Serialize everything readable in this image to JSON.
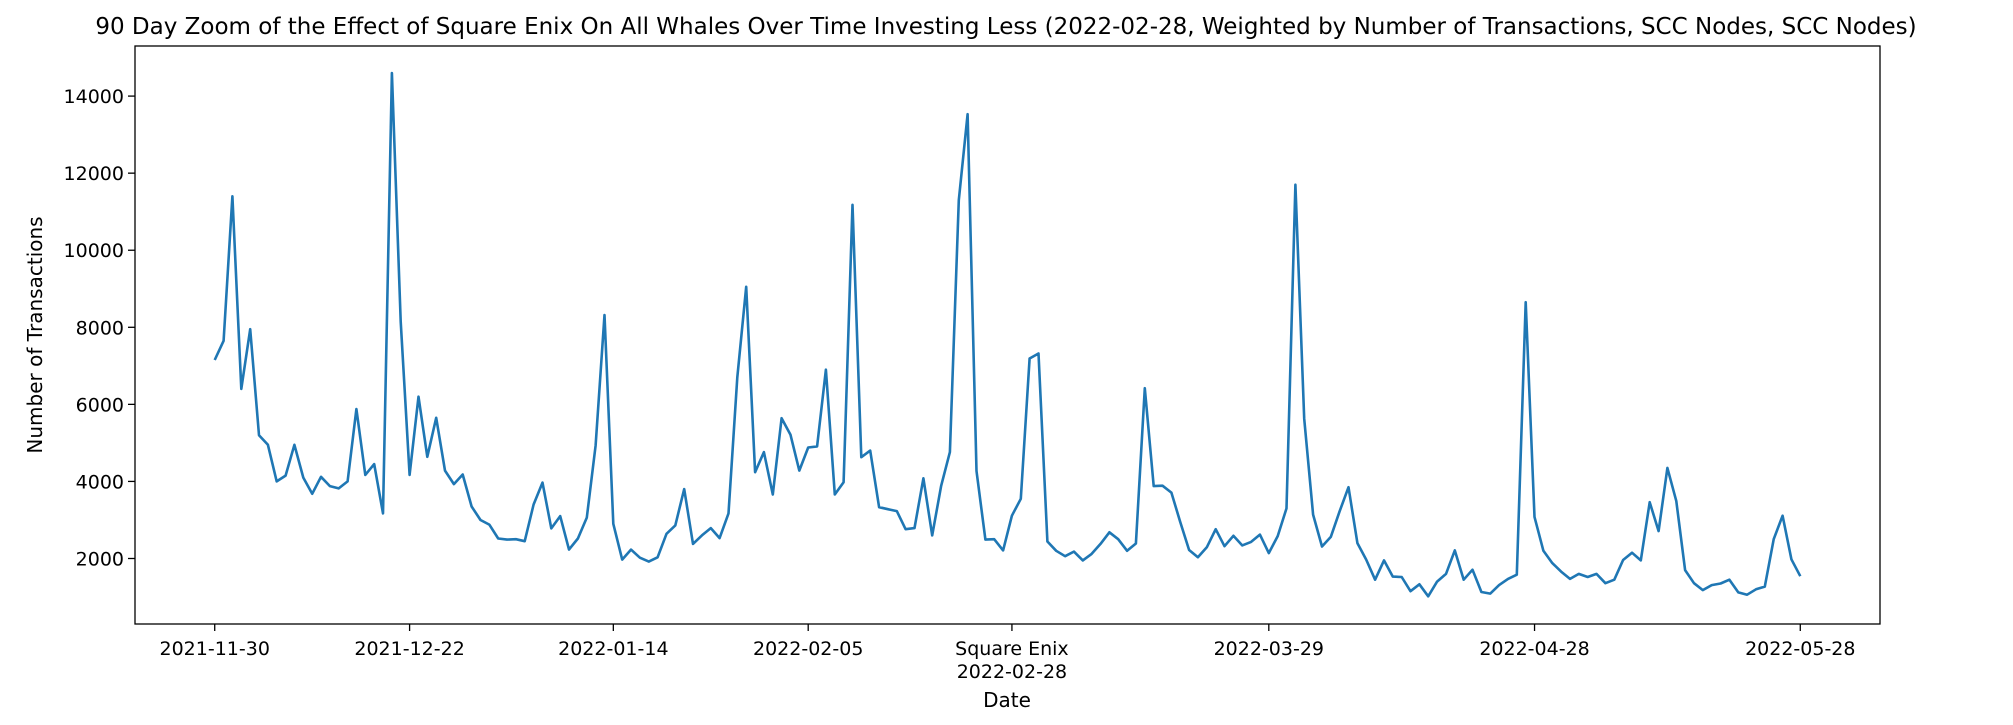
{
  "chart_data": {
    "type": "line",
    "title": "90 Day Zoom of the Effect of Square Enix On All Whales Over Time Investing Less (2022-02-28, Weighted by Number of Transactions, SCC Nodes, SCC Nodes)",
    "xlabel": "Date",
    "ylabel": "Number of Transactions",
    "x_start": "2021-11-30",
    "x_end": "2022-05-28",
    "xlim": [
      "2021-11-21",
      "2022-06-06"
    ],
    "ylim": [
      300,
      15300
    ],
    "y_ticks": [
      2000,
      4000,
      6000,
      8000,
      10000,
      12000,
      14000
    ],
    "x_ticks": [
      {
        "date": "2021-11-30",
        "label": "2021-11-30"
      },
      {
        "date": "2021-12-22",
        "label": "2021-12-22"
      },
      {
        "date": "2022-01-14",
        "label": "2022-01-14"
      },
      {
        "date": "2022-02-05",
        "label": "2022-02-05"
      },
      {
        "date": "2022-02-28",
        "label": "Square Enix",
        "label2": "2022-02-28"
      },
      {
        "date": "2022-03-29",
        "label": "2022-03-29"
      },
      {
        "date": "2022-04-28",
        "label": "2022-04-28"
      },
      {
        "date": "2022-05-28",
        "label": "2022-05-28"
      }
    ],
    "grid": false,
    "line_color": "#1f77b4",
    "series": [
      {
        "values": [
          7150,
          7650,
          11400,
          6400,
          7950,
          5200,
          4950,
          4000,
          4150,
          4950,
          4100,
          3680,
          4120,
          3880,
          3820,
          4000,
          5880,
          4170,
          4450,
          3170,
          14600,
          8150,
          4170,
          6200,
          4640,
          5650,
          4280,
          3930,
          4180,
          3350,
          3000,
          2880,
          2520,
          2490,
          2500,
          2450,
          3400,
          3970,
          2780,
          3100,
          2230,
          2520,
          3060,
          4930,
          8320,
          2900,
          1970,
          2230,
          2020,
          1920,
          2030,
          2640,
          2860,
          3800,
          2380,
          2600,
          2790,
          2530,
          3170,
          6700,
          9050,
          4240,
          4760,
          3660,
          5640,
          5210,
          4280,
          4880,
          4910,
          6900,
          3660,
          3980,
          11180,
          4630,
          4800,
          3330,
          3280,
          3230,
          2760,
          2790,
          4080,
          2600,
          3880,
          4760,
          11300,
          13530,
          4270,
          2490,
          2500,
          2210,
          3110,
          3550,
          7190,
          7320,
          2440,
          2200,
          2060,
          2180,
          1950,
          2120,
          2380,
          2680,
          2500,
          2200,
          2390,
          6420,
          3880,
          3890,
          3710,
          2950,
          2220,
          2030,
          2290,
          2760,
          2320,
          2590,
          2340,
          2430,
          2620,
          2140,
          2580,
          3300,
          11700,
          5630,
          3140,
          2310,
          2560,
          3230,
          3850,
          2400,
          1970,
          1450,
          1950,
          1530,
          1520,
          1150,
          1330,
          1020,
          1400,
          1600,
          2210,
          1450,
          1710,
          1130,
          1090,
          1310,
          1470,
          1580,
          8650,
          3080,
          2200,
          1880,
          1660,
          1470,
          1600,
          1520,
          1600,
          1360,
          1450,
          1960,
          2150,
          1950,
          3460,
          2710,
          4350,
          3490,
          1700,
          1360,
          1180,
          1310,
          1350,
          1450,
          1120,
          1060,
          1200,
          1270,
          2500,
          3110,
          1980,
          1540
        ]
      }
    ]
  }
}
